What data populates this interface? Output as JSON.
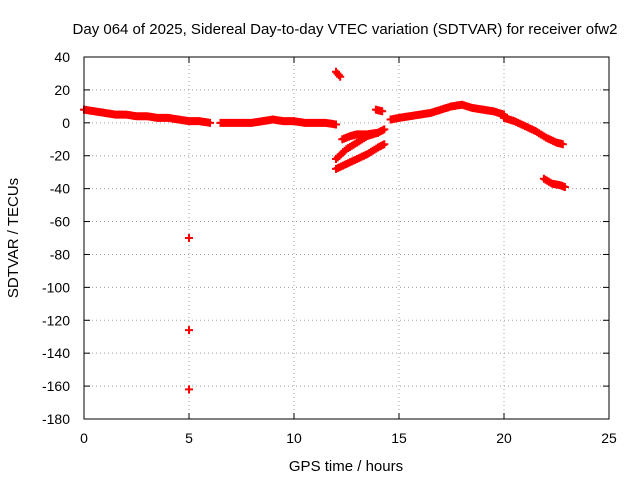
{
  "chart_data": {
    "type": "scatter",
    "title": "Day 064 of 2025, Sidereal Day-to-day VTEC variation (SDTVAR) for receiver ofw2",
    "xlabel": "GPS time / hours",
    "ylabel": "SDTVAR / TECUs",
    "xlim": [
      0,
      25
    ],
    "ylim": [
      -180,
      40
    ],
    "xticks": [
      0,
      5,
      10,
      15,
      20,
      25
    ],
    "yticks": [
      40,
      20,
      0,
      -20,
      -40,
      -60,
      -80,
      -100,
      -120,
      -140,
      -160,
      -180
    ],
    "grid": true,
    "marker": "plus",
    "color": "#ff0000",
    "series": [
      {
        "name": "main arc",
        "segments": [
          {
            "x": [
              0.0,
              0.5,
              1.0,
              1.5,
              2.0,
              2.5,
              3.0,
              3.5,
              4.0,
              4.5,
              5.0,
              5.5,
              6.0
            ],
            "y": [
              8,
              7,
              6,
              5,
              5,
              4,
              4,
              3,
              3,
              2,
              1,
              1,
              0
            ]
          },
          {
            "x": [
              6.5,
              7.0,
              7.5,
              8.0,
              8.5,
              9.0,
              9.5,
              10.0,
              10.5,
              11.0,
              11.5,
              12.0
            ],
            "y": [
              0,
              0,
              0,
              0,
              1,
              2,
              1,
              1,
              0,
              0,
              0,
              -1
            ]
          },
          {
            "x": [
              12.0,
              12.2
            ],
            "y": [
              31,
              28
            ]
          },
          {
            "x": [
              12.0,
              12.5,
              13.0,
              13.5,
              14.0,
              14.3
            ],
            "y": [
              -22,
              -16,
              -12,
              -8,
              -6,
              -4
            ]
          },
          {
            "x": [
              12.0,
              12.5,
              13.0,
              13.5,
              14.0,
              14.3
            ],
            "y": [
              -28,
              -25,
              -22,
              -19,
              -15,
              -13
            ]
          },
          {
            "x": [
              12.3,
              12.7,
              13.0,
              13.5,
              14.0
            ],
            "y": [
              -10,
              -8,
              -7,
              -7,
              -6
            ]
          },
          {
            "x": [
              13.9,
              14.2
            ],
            "y": [
              8,
              7
            ]
          },
          {
            "x": [
              14.6,
              15.0,
              15.5,
              16.0,
              16.5,
              17.0,
              17.5,
              18.0,
              18.5,
              19.0,
              19.5,
              20.0
            ],
            "y": [
              2,
              3,
              4,
              5,
              6,
              8,
              10,
              11,
              9,
              8,
              7,
              5
            ]
          },
          {
            "x": [
              20.0,
              20.5,
              21.0,
              21.5,
              22.0,
              22.5,
              22.8
            ],
            "y": [
              3,
              1,
              -2,
              -5,
              -9,
              -12,
              -13
            ]
          },
          {
            "x": [
              21.9,
              22.3,
              22.7,
              22.9
            ],
            "y": [
              -34,
              -37,
              -38,
              -39
            ]
          }
        ]
      },
      {
        "name": "outliers",
        "points": [
          {
            "x": 5.0,
            "y": -70
          },
          {
            "x": 5.0,
            "y": -126
          },
          {
            "x": 5.0,
            "y": -162
          }
        ]
      }
    ]
  }
}
